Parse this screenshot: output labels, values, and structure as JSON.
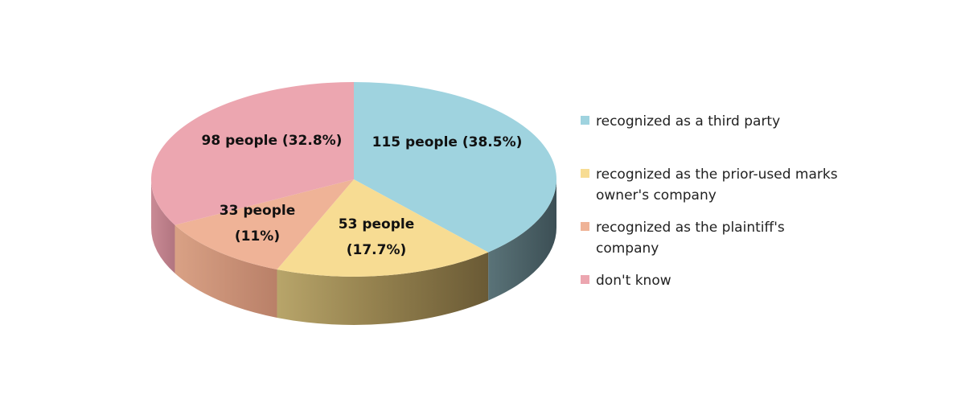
{
  "chart_data": {
    "type": "pie",
    "title": "",
    "slices": [
      {
        "name": "recognized as a third party",
        "count": 115,
        "percent": 38.5,
        "label_line1": "115 people (38.5%)",
        "label_line2": "",
        "color": "#9fd3df"
      },
      {
        "name": "recognized as the prior-used marks owner's company",
        "count": 53,
        "percent": 17.7,
        "label_line1": "53 people",
        "label_line2": "(17.7%)",
        "color": "#f7dc93"
      },
      {
        "name": "recognized as the plaintiff's company",
        "count": 33,
        "percent": 11,
        "label_line1": "33 people",
        "label_line2": "(11%)",
        "color": "#efb397"
      },
      {
        "name": "don't know",
        "count": 98,
        "percent": 32.8,
        "label_line1": "98 people (32.8%)",
        "label_line2": "",
        "color": "#eca6b0"
      }
    ],
    "legend_position": "right"
  },
  "legend": {
    "items": [
      {
        "line1": "recognized as a third party",
        "line2": "",
        "color": "#9fd3df"
      },
      {
        "line1": "recognized as the prior-used marks",
        "line2": "owner's company",
        "color": "#f7dc93"
      },
      {
        "line1": "recognized as the plaintiff's",
        "line2": "company",
        "color": "#efb397"
      },
      {
        "line1": "don't know",
        "line2": "",
        "color": "#eca6b0"
      }
    ]
  }
}
